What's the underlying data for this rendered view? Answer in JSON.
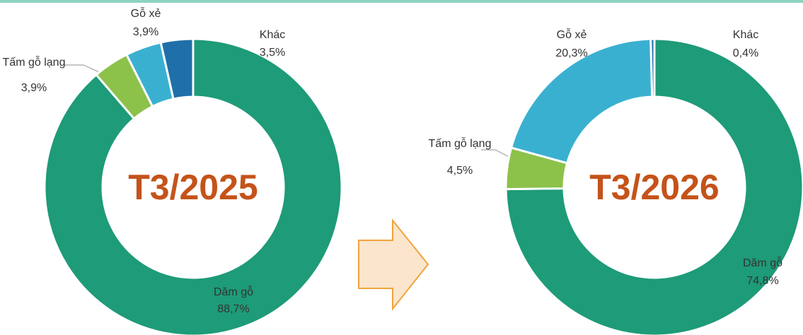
{
  "chart_data": [
    {
      "type": "donut",
      "title": "T3/2025",
      "categories": [
        "Dăm gỗ",
        "Tấm gỗ lạng",
        "Gỗ xẻ",
        "Khác"
      ],
      "values": [
        88.7,
        3.9,
        3.9,
        3.5
      ],
      "value_labels": [
        "88,7%",
        "3,9%",
        "3,9%",
        "3,5%"
      ],
      "colors": [
        "#1e9b78",
        "#8cc14a",
        "#3ab0d1",
        "#1f6fa9"
      ]
    },
    {
      "type": "donut",
      "title": "T3/2026",
      "categories": [
        "Dăm gỗ",
        "Tấm gỗ lạng",
        "Gỗ xẻ",
        "Khác"
      ],
      "values": [
        74.8,
        4.5,
        20.3,
        0.4
      ],
      "value_labels": [
        "74,8%",
        "4,5%",
        "20,3%",
        "0,4%"
      ],
      "colors": [
        "#1e9b78",
        "#8cc14a",
        "#3ab0d1",
        "#1f6fa9"
      ]
    }
  ]
}
